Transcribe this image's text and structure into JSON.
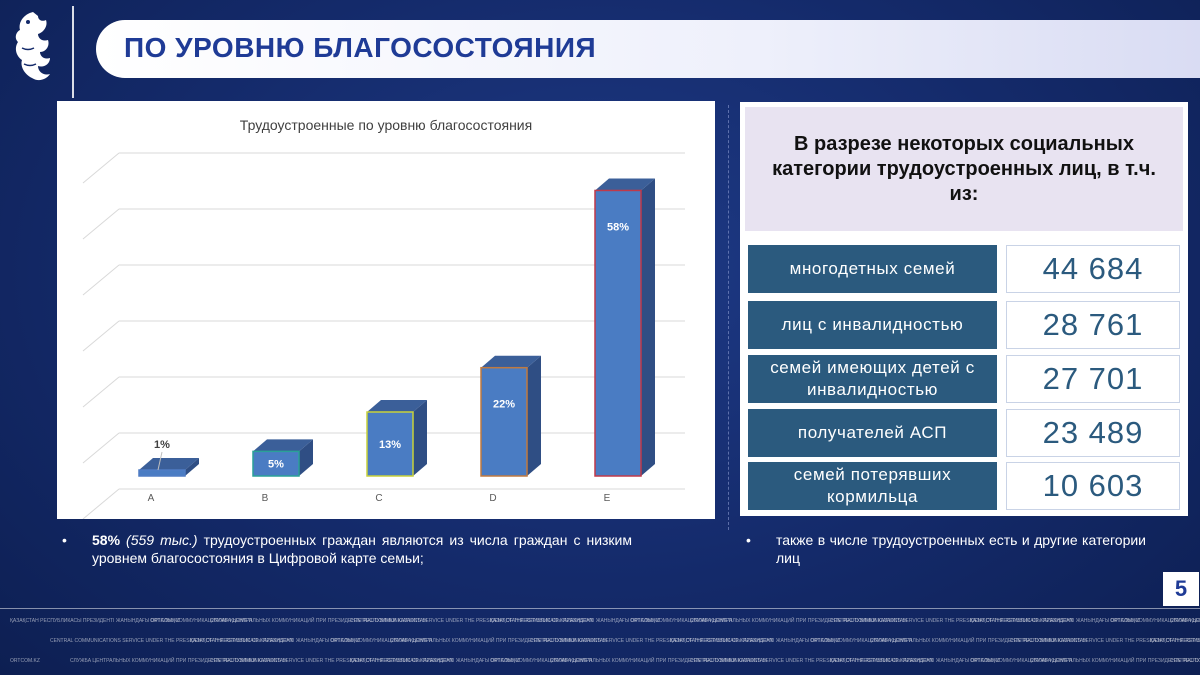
{
  "header": {
    "title": "ПО УРОВНЮ БЛАГОСОСТОЯНИЯ"
  },
  "chart_data": {
    "type": "bar",
    "title": "Трудоустроенные по уровню благосостояния",
    "categories": [
      "A",
      "B",
      "C",
      "D",
      "E"
    ],
    "values": [
      1,
      5,
      13,
      22,
      58
    ],
    "value_labels": [
      "1%",
      "5%",
      "13%",
      "22%",
      "58%"
    ],
    "ylim": [
      0,
      65
    ],
    "grid": true,
    "style": "3d",
    "bar_edge_colors": [
      "#4f7cc4",
      "#2aa198",
      "#c8d23a",
      "#c07a40",
      "#c0394a"
    ]
  },
  "panel": {
    "header": "В разрезе некоторых социальных категории трудоустроенных лиц, в т.ч. из:",
    "stats": [
      {
        "label": "многодетных семей",
        "value": "44 684"
      },
      {
        "label": "лиц с инвалидностью",
        "value": "28 761"
      },
      {
        "label": "семей имеющих детей с инвалидностью",
        "value": "27 701"
      },
      {
        "label": "получателей АСП",
        "value": "23 489"
      },
      {
        "label": "семей потерявших кормильца",
        "value": "10 603"
      }
    ]
  },
  "notes": {
    "left_bold": "58%",
    "left_italic": "(559 тыс.)",
    "left_text": "трудоустроенных граждан являются из числа граждан с низким уровнем благосостояния в Цифровой карте семьи;",
    "right_text": "также в числе трудоустроенных есть и другие категории лиц"
  },
  "page_number": "5",
  "footer": {
    "items": [
      "ҚАЗАҚСТАН РЕСПУБЛИКАСЫ ПРЕЗИДЕНТІ ЖАНЫНДАҒЫ ОРТАЛЫҚ КОММУНИКАЦИЯЛАР ҚЫЗМЕТІ",
      "ORTCOM.KZ",
      "СЛУЖБА ЦЕНТРАЛЬНЫХ КОММУНИКАЦИЙ ПРИ ПРЕЗИДЕНТЕ РЕСПУБЛИКИ КАЗАХСТАН",
      "CENTRAL COMMUNICATIONS SERVICE UNDER THE PRESIDENT OF THE REPUBLIC OF KAZAKHSTAN"
    ]
  }
}
